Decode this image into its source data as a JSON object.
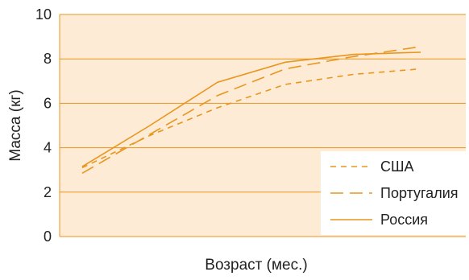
{
  "chart_data": {
    "type": "line",
    "title": "",
    "xlabel": "Возраст (мес.)",
    "ylabel": "Масса (кг)",
    "ylim": [
      0,
      10
    ],
    "yticks": [
      0,
      2,
      4,
      6,
      8,
      10
    ],
    "xlim": [
      -1,
      17
    ],
    "grid": "horizontal",
    "legend_position": "bottom-right",
    "colors": {
      "background": "#fdebd6",
      "series": "#e8961e",
      "grid": "#e8961e",
      "legend_background": "#ffffff"
    },
    "series": [
      {
        "name": "США",
        "dash": "dashed",
        "x": [
          0,
          3,
          6,
          9,
          12,
          15
        ],
        "y": [
          3.1,
          4.55,
          5.8,
          6.85,
          7.3,
          7.55
        ]
      },
      {
        "name": "Португалия",
        "dash": "long-dashed",
        "x": [
          0,
          3,
          6,
          9,
          12,
          15
        ],
        "y": [
          2.85,
          4.6,
          6.35,
          7.55,
          8.1,
          8.55
        ]
      },
      {
        "name": "Россия",
        "dash": "solid",
        "x": [
          0,
          3,
          6,
          9,
          12,
          15
        ],
        "y": [
          3.15,
          5.0,
          6.95,
          7.85,
          8.2,
          8.3
        ]
      }
    ]
  }
}
